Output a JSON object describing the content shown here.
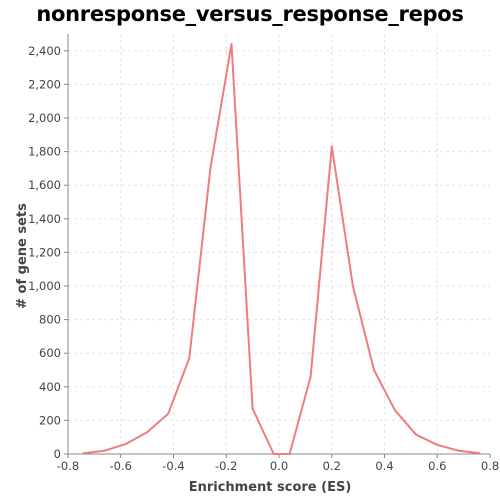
{
  "chart_data": {
    "type": "line",
    "title": "nonresponse_versus_response_repos",
    "xlabel": "Enrichment score (ES)",
    "ylabel": "# of gene sets",
    "xlim": [
      -0.8,
      0.8
    ],
    "ylim": [
      0,
      2500
    ],
    "x_ticks": [
      -0.8,
      -0.6,
      -0.4,
      -0.2,
      0.0,
      0.2,
      0.4,
      0.6,
      0.8
    ],
    "x_tick_labels": [
      "-0.8",
      "-0.6",
      "-0.4",
      "-0.2",
      "0.0",
      "0.2",
      "0.4",
      "0.6",
      "0.8"
    ],
    "y_ticks": [
      0,
      200,
      400,
      600,
      800,
      1000,
      1200,
      1400,
      1600,
      1800,
      2000,
      2200,
      2400
    ],
    "y_tick_labels": [
      "0",
      "200",
      "400",
      "600",
      "800",
      "1,000",
      "1,200",
      "1,400",
      "1,600",
      "1,800",
      "2,000",
      "2,200",
      "2,400"
    ],
    "grid": true,
    "series": [
      {
        "color": "#f07d7d",
        "x": [
          -0.74,
          -0.66,
          -0.58,
          -0.5,
          -0.42,
          -0.34,
          -0.26,
          -0.18,
          -0.1,
          -0.02,
          0.04,
          0.12,
          0.2,
          0.28,
          0.36,
          0.44,
          0.52,
          0.6,
          0.68,
          0.76
        ],
        "y": [
          5,
          20,
          60,
          130,
          240,
          570,
          1700,
          2440,
          270,
          0,
          0,
          460,
          1830,
          1000,
          500,
          260,
          115,
          55,
          20,
          5
        ]
      }
    ]
  }
}
